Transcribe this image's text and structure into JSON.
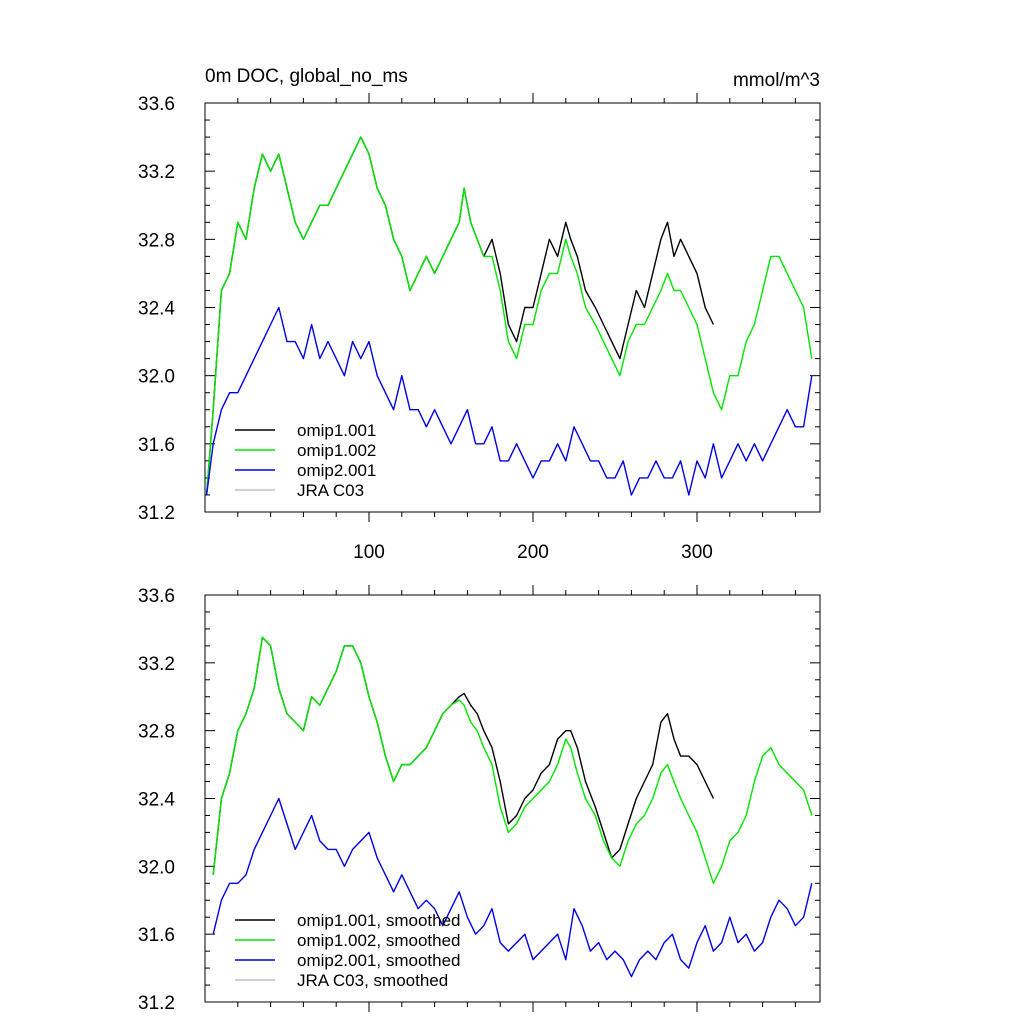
{
  "page": {
    "left_title": "0m DOC, global_no_ms",
    "right_title": "mmol/m^3"
  },
  "chart_data": [
    {
      "type": "line",
      "xlim": [
        0,
        375
      ],
      "ylim": [
        31.2,
        33.6
      ],
      "yticks": [
        31.2,
        31.6,
        32.0,
        32.4,
        32.8,
        33.2,
        33.6
      ],
      "ytick_labels": [
        "31.2",
        "31.6",
        "32.0",
        "32.4",
        "32.8",
        "33.2",
        "33.6"
      ],
      "xticks": [
        100,
        200,
        300
      ],
      "xtick_labels": [
        "100",
        "200",
        "300"
      ],
      "legend_position": "bottom-left",
      "series": [
        {
          "name": "omip1.001",
          "color": "#000000",
          "x": [
            1,
            5,
            10,
            15,
            20,
            25,
            30,
            35,
            40,
            45,
            50,
            55,
            60,
            65,
            70,
            75,
            80,
            85,
            90,
            95,
            100,
            105,
            110,
            115,
            120,
            125,
            130,
            135,
            140,
            145,
            150,
            155,
            158,
            162,
            166,
            170,
            175,
            180,
            185,
            190,
            195,
            200,
            205,
            210,
            215,
            220,
            223,
            227,
            232,
            238,
            243,
            248,
            253,
            258,
            263,
            268,
            273,
            278,
            282,
            286,
            290,
            295,
            300,
            305,
            310
          ],
          "y": [
            31.3,
            31.8,
            32.5,
            32.6,
            32.9,
            32.8,
            33.1,
            33.3,
            33.2,
            33.3,
            33.1,
            32.9,
            32.8,
            32.9,
            33.0,
            33.0,
            33.1,
            33.2,
            33.3,
            33.4,
            33.3,
            33.1,
            33.0,
            32.8,
            32.7,
            32.5,
            32.6,
            32.7,
            32.6,
            32.7,
            32.8,
            32.9,
            33.1,
            32.9,
            32.8,
            32.7,
            32.8,
            32.6,
            32.3,
            32.2,
            32.4,
            32.4,
            32.6,
            32.8,
            32.7,
            32.9,
            32.8,
            32.7,
            32.5,
            32.4,
            32.3,
            32.2,
            32.1,
            32.3,
            32.5,
            32.4,
            32.6,
            32.8,
            32.9,
            32.7,
            32.8,
            32.7,
            32.6,
            32.4,
            32.3
          ]
        },
        {
          "name": "omip1.002",
          "color": "#00e600",
          "x": [
            1,
            5,
            10,
            15,
            20,
            25,
            30,
            35,
            40,
            45,
            50,
            55,
            60,
            65,
            70,
            75,
            80,
            85,
            90,
            95,
            100,
            105,
            110,
            115,
            120,
            125,
            130,
            135,
            140,
            145,
            150,
            155,
            158,
            162,
            166,
            170,
            175,
            180,
            185,
            190,
            195,
            200,
            205,
            210,
            215,
            220,
            223,
            227,
            232,
            238,
            243,
            248,
            253,
            258,
            263,
            268,
            273,
            278,
            282,
            286,
            290,
            295,
            300,
            305,
            310,
            315,
            320,
            325,
            330,
            335,
            340,
            345,
            350,
            355,
            360,
            365,
            370
          ],
          "y": [
            31.3,
            31.8,
            32.5,
            32.6,
            32.9,
            32.8,
            33.1,
            33.3,
            33.2,
            33.3,
            33.1,
            32.9,
            32.8,
            32.9,
            33.0,
            33.0,
            33.1,
            33.2,
            33.3,
            33.4,
            33.3,
            33.1,
            33.0,
            32.8,
            32.7,
            32.5,
            32.6,
            32.7,
            32.6,
            32.7,
            32.8,
            32.9,
            33.1,
            32.9,
            32.8,
            32.7,
            32.7,
            32.5,
            32.2,
            32.1,
            32.3,
            32.3,
            32.5,
            32.6,
            32.6,
            32.8,
            32.7,
            32.6,
            32.4,
            32.3,
            32.2,
            32.1,
            32.0,
            32.2,
            32.3,
            32.3,
            32.4,
            32.5,
            32.6,
            32.5,
            32.5,
            32.4,
            32.3,
            32.1,
            31.9,
            31.8,
            32.0,
            32.0,
            32.2,
            32.3,
            32.5,
            32.7,
            32.7,
            32.6,
            32.5,
            32.4,
            32.1
          ]
        },
        {
          "name": "omip2.001",
          "color": "#0000e6",
          "x": [
            1,
            5,
            10,
            15,
            20,
            25,
            30,
            35,
            40,
            45,
            50,
            55,
            60,
            65,
            70,
            75,
            80,
            85,
            90,
            95,
            100,
            105,
            110,
            115,
            120,
            125,
            130,
            135,
            140,
            145,
            150,
            155,
            160,
            165,
            170,
            175,
            180,
            185,
            190,
            195,
            200,
            205,
            210,
            215,
            220,
            225,
            230,
            235,
            240,
            245,
            250,
            255,
            260,
            265,
            270,
            275,
            280,
            285,
            290,
            295,
            300,
            305,
            310,
            315,
            320,
            325,
            330,
            335,
            340,
            345,
            350,
            355,
            360,
            365,
            370
          ],
          "y": [
            31.3,
            31.6,
            31.8,
            31.9,
            31.9,
            32.0,
            32.1,
            32.2,
            32.3,
            32.4,
            32.2,
            32.2,
            32.1,
            32.3,
            32.1,
            32.2,
            32.1,
            32.0,
            32.2,
            32.1,
            32.2,
            32.0,
            31.9,
            31.8,
            32.0,
            31.8,
            31.8,
            31.7,
            31.8,
            31.7,
            31.6,
            31.7,
            31.8,
            31.6,
            31.6,
            31.7,
            31.5,
            31.5,
            31.6,
            31.5,
            31.4,
            31.5,
            31.5,
            31.6,
            31.5,
            31.7,
            31.6,
            31.5,
            31.5,
            31.4,
            31.4,
            31.5,
            31.3,
            31.4,
            31.4,
            31.5,
            31.4,
            31.4,
            31.5,
            31.3,
            31.5,
            31.4,
            31.6,
            31.4,
            31.5,
            31.6,
            31.5,
            31.6,
            31.5,
            31.6,
            31.7,
            31.8,
            31.7,
            31.7,
            32.0
          ]
        },
        {
          "name": "JRA C03",
          "color": "#c0c0c0",
          "x": [],
          "y": []
        }
      ]
    },
    {
      "type": "line",
      "xlim": [
        0,
        375
      ],
      "ylim": [
        31.2,
        33.6
      ],
      "yticks": [
        31.2,
        31.6,
        32.0,
        32.4,
        32.8,
        33.2,
        33.6
      ],
      "ytick_labels": [
        "31.2",
        "31.6",
        "32.0",
        "32.4",
        "32.8",
        "33.2",
        "33.6"
      ],
      "xticks": [
        100,
        200,
        300
      ],
      "xtick_labels": [],
      "legend_position": "bottom-left",
      "series": [
        {
          "name": "omip1.001, smoothed",
          "color": "#000000",
          "x": [
            5,
            10,
            15,
            20,
            25,
            30,
            35,
            40,
            45,
            50,
            55,
            60,
            65,
            70,
            75,
            80,
            85,
            90,
            95,
            100,
            105,
            110,
            115,
            120,
            125,
            130,
            135,
            140,
            145,
            150,
            155,
            158,
            162,
            166,
            170,
            175,
            180,
            185,
            190,
            195,
            200,
            205,
            210,
            215,
            220,
            223,
            227,
            232,
            238,
            243,
            248,
            253,
            258,
            263,
            268,
            273,
            278,
            282,
            286,
            290,
            295,
            300,
            305,
            310
          ],
          "y": [
            31.95,
            32.4,
            32.55,
            32.8,
            32.9,
            33.05,
            33.35,
            33.3,
            33.05,
            32.9,
            32.85,
            32.8,
            33.0,
            32.95,
            33.05,
            33.15,
            33.3,
            33.3,
            33.2,
            33.0,
            32.85,
            32.65,
            32.5,
            32.6,
            32.6,
            32.65,
            32.7,
            32.8,
            32.9,
            32.95,
            33.0,
            33.02,
            32.95,
            32.9,
            32.8,
            32.7,
            32.5,
            32.25,
            32.3,
            32.4,
            32.45,
            32.55,
            32.6,
            32.75,
            32.8,
            32.8,
            32.7,
            32.5,
            32.35,
            32.2,
            32.05,
            32.1,
            32.25,
            32.4,
            32.5,
            32.6,
            32.85,
            32.9,
            32.75,
            32.65,
            32.65,
            32.6,
            32.5,
            32.4
          ]
        },
        {
          "name": "omip1.002, smoothed",
          "color": "#00e600",
          "x": [
            5,
            10,
            15,
            20,
            25,
            30,
            35,
            40,
            45,
            50,
            55,
            60,
            65,
            70,
            75,
            80,
            85,
            90,
            95,
            100,
            105,
            110,
            115,
            120,
            125,
            130,
            135,
            140,
            145,
            150,
            155,
            158,
            162,
            166,
            170,
            175,
            180,
            185,
            190,
            195,
            200,
            205,
            210,
            215,
            220,
            223,
            227,
            232,
            238,
            243,
            248,
            253,
            258,
            263,
            268,
            273,
            278,
            282,
            286,
            290,
            295,
            300,
            305,
            310,
            315,
            320,
            325,
            330,
            335,
            340,
            345,
            350,
            355,
            360,
            365,
            370
          ],
          "y": [
            31.95,
            32.4,
            32.55,
            32.8,
            32.9,
            33.05,
            33.35,
            33.3,
            33.05,
            32.9,
            32.85,
            32.8,
            33.0,
            32.95,
            33.05,
            33.15,
            33.3,
            33.3,
            33.2,
            33.0,
            32.85,
            32.65,
            32.5,
            32.6,
            32.6,
            32.65,
            32.7,
            32.8,
            32.9,
            32.95,
            32.98,
            32.95,
            32.85,
            32.8,
            32.7,
            32.6,
            32.35,
            32.2,
            32.25,
            32.35,
            32.4,
            32.45,
            32.5,
            32.6,
            32.75,
            32.7,
            32.55,
            32.4,
            32.3,
            32.15,
            32.05,
            32.0,
            32.15,
            32.25,
            32.3,
            32.4,
            32.55,
            32.6,
            32.5,
            32.4,
            32.3,
            32.2,
            32.05,
            31.9,
            32.0,
            32.15,
            32.2,
            32.3,
            32.5,
            32.65,
            32.7,
            32.6,
            32.55,
            32.5,
            32.45,
            32.3
          ]
        },
        {
          "name": "omip2.001, smoothed",
          "color": "#0000e6",
          "x": [
            5,
            10,
            15,
            20,
            25,
            30,
            35,
            40,
            45,
            50,
            55,
            60,
            65,
            70,
            75,
            80,
            85,
            90,
            95,
            100,
            105,
            110,
            115,
            120,
            125,
            130,
            135,
            140,
            145,
            150,
            155,
            160,
            165,
            170,
            175,
            180,
            185,
            190,
            195,
            200,
            205,
            210,
            215,
            220,
            225,
            230,
            235,
            240,
            245,
            250,
            255,
            260,
            265,
            270,
            275,
            280,
            285,
            290,
            295,
            300,
            305,
            310,
            315,
            320,
            325,
            330,
            335,
            340,
            345,
            350,
            355,
            360,
            365,
            370
          ],
          "y": [
            31.6,
            31.8,
            31.9,
            31.9,
            31.95,
            32.1,
            32.2,
            32.3,
            32.4,
            32.25,
            32.1,
            32.2,
            32.3,
            32.15,
            32.1,
            32.1,
            32.0,
            32.1,
            32.15,
            32.2,
            32.05,
            31.95,
            31.85,
            31.95,
            31.85,
            31.75,
            31.8,
            31.75,
            31.65,
            31.75,
            31.85,
            31.7,
            31.6,
            31.65,
            31.75,
            31.55,
            31.5,
            31.55,
            31.6,
            31.45,
            31.5,
            31.55,
            31.6,
            31.45,
            31.75,
            31.65,
            31.5,
            31.55,
            31.45,
            31.5,
            31.45,
            31.35,
            31.45,
            31.5,
            31.45,
            31.55,
            31.6,
            31.45,
            31.4,
            31.55,
            31.65,
            31.5,
            31.55,
            31.7,
            31.55,
            31.6,
            31.5,
            31.55,
            31.7,
            31.8,
            31.75,
            31.65,
            31.7,
            31.9
          ]
        },
        {
          "name": "JRA C03, smoothed",
          "color": "#c0c0c0",
          "x": [],
          "y": []
        }
      ]
    }
  ]
}
